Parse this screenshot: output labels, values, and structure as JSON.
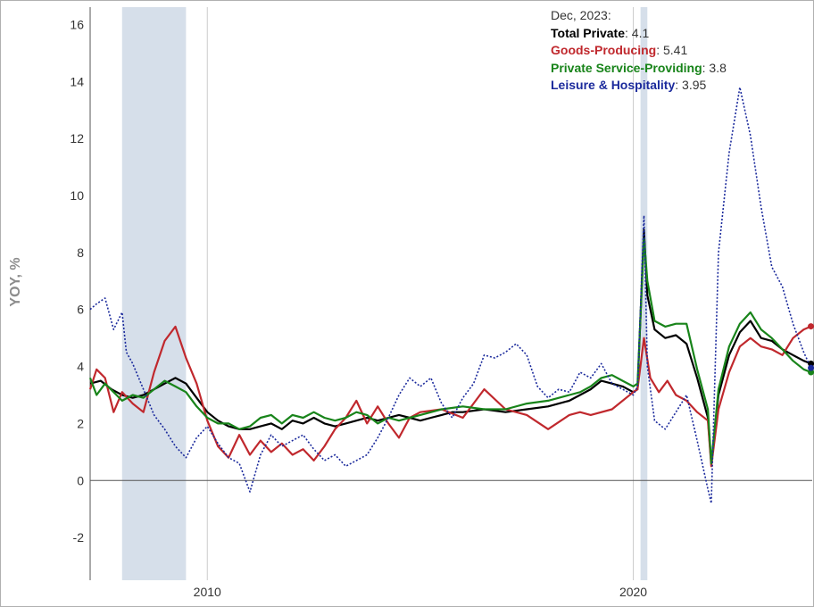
{
  "tooltip": {
    "date": "Dec, 2023:",
    "rows": [
      {
        "name": "Total Private",
        "value": "4.1",
        "color": "#000000"
      },
      {
        "name": "Goods-Producing",
        "value": "5.41",
        "color": "#c0282d"
      },
      {
        "name": "Private Service-Providing",
        "value": "3.8",
        "color": "#18841a"
      },
      {
        "name": "Leisure & Hospitality",
        "value": "3.95",
        "color": "#1b2a9c"
      }
    ]
  },
  "chart_data": {
    "type": "line",
    "title": "",
    "xlabel": "",
    "ylabel": "YOY, %",
    "xlim": [
      2007.25,
      2024.2
    ],
    "ylim": [
      -3.5,
      16.8
    ],
    "y_ticks": [
      -2,
      0,
      2,
      4,
      6,
      8,
      10,
      12,
      14,
      16
    ],
    "x_ticks": [
      {
        "value": 2010,
        "label": "2010"
      },
      {
        "value": 2020,
        "label": "2020"
      }
    ],
    "recessions": [
      [
        2008.0,
        2009.5
      ],
      [
        2020.17,
        2020.33
      ]
    ],
    "colors": {
      "recession": "#d6dfea",
      "zero_line": "#555555",
      "axis": "#555555",
      "vgrid": "#cccccc"
    },
    "series": [
      {
        "name": "Total Private",
        "color": "#000000",
        "style": "solid",
        "points": [
          [
            2007.25,
            3.4
          ],
          [
            2007.5,
            3.5
          ],
          [
            2007.75,
            3.2
          ],
          [
            2008.0,
            3.0
          ],
          [
            2008.25,
            2.9
          ],
          [
            2008.5,
            3.0
          ],
          [
            2008.75,
            3.2
          ],
          [
            2009.0,
            3.4
          ],
          [
            2009.25,
            3.6
          ],
          [
            2009.5,
            3.4
          ],
          [
            2009.75,
            2.9
          ],
          [
            2010.0,
            2.4
          ],
          [
            2010.25,
            2.1
          ],
          [
            2010.5,
            1.9
          ],
          [
            2010.75,
            1.8
          ],
          [
            2011.0,
            1.8
          ],
          [
            2011.25,
            1.9
          ],
          [
            2011.5,
            2.0
          ],
          [
            2011.75,
            1.8
          ],
          [
            2012.0,
            2.1
          ],
          [
            2012.25,
            2.0
          ],
          [
            2012.5,
            2.2
          ],
          [
            2012.75,
            2.0
          ],
          [
            2013.0,
            1.9
          ],
          [
            2013.25,
            2.0
          ],
          [
            2013.5,
            2.1
          ],
          [
            2013.75,
            2.2
          ],
          [
            2014.0,
            2.1
          ],
          [
            2014.25,
            2.2
          ],
          [
            2014.5,
            2.3
          ],
          [
            2014.75,
            2.2
          ],
          [
            2015.0,
            2.1
          ],
          [
            2015.25,
            2.2
          ],
          [
            2015.5,
            2.3
          ],
          [
            2015.75,
            2.4
          ],
          [
            2016.0,
            2.4
          ],
          [
            2016.5,
            2.5
          ],
          [
            2017.0,
            2.4
          ],
          [
            2017.5,
            2.5
          ],
          [
            2018.0,
            2.6
          ],
          [
            2018.5,
            2.8
          ],
          [
            2018.75,
            3.0
          ],
          [
            2019.0,
            3.2
          ],
          [
            2019.25,
            3.5
          ],
          [
            2019.5,
            3.4
          ],
          [
            2019.75,
            3.3
          ],
          [
            2020.0,
            3.1
          ],
          [
            2020.1,
            3.2
          ],
          [
            2020.25,
            8.8
          ],
          [
            2020.33,
            6.5
          ],
          [
            2020.5,
            5.3
          ],
          [
            2020.75,
            5.0
          ],
          [
            2021.0,
            5.1
          ],
          [
            2021.25,
            4.8
          ],
          [
            2021.5,
            3.6
          ],
          [
            2021.75,
            2.2
          ],
          [
            2021.83,
            0.6
          ],
          [
            2022.0,
            3.0
          ],
          [
            2022.25,
            4.4
          ],
          [
            2022.5,
            5.2
          ],
          [
            2022.75,
            5.6
          ],
          [
            2023.0,
            5.0
          ],
          [
            2023.25,
            4.9
          ],
          [
            2023.5,
            4.6
          ],
          [
            2023.75,
            4.4
          ],
          [
            2024.0,
            4.2
          ],
          [
            2024.17,
            4.1
          ]
        ]
      },
      {
        "name": "Goods-Producing",
        "color": "#c0282d",
        "style": "solid",
        "points": [
          [
            2007.25,
            3.2
          ],
          [
            2007.4,
            3.9
          ],
          [
            2007.6,
            3.6
          ],
          [
            2007.8,
            2.4
          ],
          [
            2008.0,
            3.1
          ],
          [
            2008.25,
            2.7
          ],
          [
            2008.5,
            2.4
          ],
          [
            2008.75,
            3.8
          ],
          [
            2009.0,
            4.9
          ],
          [
            2009.25,
            5.4
          ],
          [
            2009.5,
            4.3
          ],
          [
            2009.75,
            3.4
          ],
          [
            2010.0,
            2.1
          ],
          [
            2010.25,
            1.2
          ],
          [
            2010.5,
            0.8
          ],
          [
            2010.75,
            1.6
          ],
          [
            2011.0,
            0.9
          ],
          [
            2011.25,
            1.4
          ],
          [
            2011.5,
            1.0
          ],
          [
            2011.75,
            1.3
          ],
          [
            2012.0,
            0.9
          ],
          [
            2012.25,
            1.1
          ],
          [
            2012.5,
            0.7
          ],
          [
            2012.75,
            1.2
          ],
          [
            2013.0,
            1.8
          ],
          [
            2013.25,
            2.2
          ],
          [
            2013.5,
            2.8
          ],
          [
            2013.75,
            2.0
          ],
          [
            2014.0,
            2.6
          ],
          [
            2014.25,
            2.0
          ],
          [
            2014.5,
            1.5
          ],
          [
            2014.75,
            2.2
          ],
          [
            2015.0,
            2.4
          ],
          [
            2015.5,
            2.5
          ],
          [
            2016.0,
            2.2
          ],
          [
            2016.5,
            3.2
          ],
          [
            2017.0,
            2.5
          ],
          [
            2017.5,
            2.3
          ],
          [
            2018.0,
            1.8
          ],
          [
            2018.5,
            2.3
          ],
          [
            2018.75,
            2.4
          ],
          [
            2019.0,
            2.3
          ],
          [
            2019.5,
            2.5
          ],
          [
            2020.0,
            3.1
          ],
          [
            2020.1,
            3.2
          ],
          [
            2020.25,
            5.0
          ],
          [
            2020.4,
            3.6
          ],
          [
            2020.6,
            3.1
          ],
          [
            2020.8,
            3.5
          ],
          [
            2021.0,
            3.0
          ],
          [
            2021.25,
            2.8
          ],
          [
            2021.5,
            2.4
          ],
          [
            2021.75,
            2.1
          ],
          [
            2021.83,
            0.5
          ],
          [
            2022.0,
            2.5
          ],
          [
            2022.25,
            3.8
          ],
          [
            2022.5,
            4.7
          ],
          [
            2022.75,
            5.0
          ],
          [
            2023.0,
            4.7
          ],
          [
            2023.25,
            4.6
          ],
          [
            2023.5,
            4.4
          ],
          [
            2023.75,
            5.0
          ],
          [
            2024.0,
            5.3
          ],
          [
            2024.17,
            5.41
          ]
        ]
      },
      {
        "name": "Private Service-Providing",
        "color": "#18841a",
        "style": "solid",
        "points": [
          [
            2007.25,
            3.6
          ],
          [
            2007.4,
            3.0
          ],
          [
            2007.6,
            3.4
          ],
          [
            2007.8,
            3.1
          ],
          [
            2008.0,
            2.8
          ],
          [
            2008.25,
            3.0
          ],
          [
            2008.5,
            2.9
          ],
          [
            2008.75,
            3.2
          ],
          [
            2009.0,
            3.5
          ],
          [
            2009.25,
            3.3
          ],
          [
            2009.5,
            3.1
          ],
          [
            2009.75,
            2.6
          ],
          [
            2010.0,
            2.2
          ],
          [
            2010.25,
            2.0
          ],
          [
            2010.5,
            2.0
          ],
          [
            2010.75,
            1.8
          ],
          [
            2011.0,
            1.9
          ],
          [
            2011.25,
            2.2
          ],
          [
            2011.5,
            2.3
          ],
          [
            2011.75,
            2.0
          ],
          [
            2012.0,
            2.3
          ],
          [
            2012.25,
            2.2
          ],
          [
            2012.5,
            2.4
          ],
          [
            2012.75,
            2.2
          ],
          [
            2013.0,
            2.1
          ],
          [
            2013.25,
            2.2
          ],
          [
            2013.5,
            2.4
          ],
          [
            2013.75,
            2.3
          ],
          [
            2014.0,
            2.0
          ],
          [
            2014.25,
            2.2
          ],
          [
            2014.5,
            2.1
          ],
          [
            2014.75,
            2.2
          ],
          [
            2015.0,
            2.3
          ],
          [
            2015.5,
            2.5
          ],
          [
            2016.0,
            2.6
          ],
          [
            2016.5,
            2.5
          ],
          [
            2017.0,
            2.5
          ],
          [
            2017.5,
            2.7
          ],
          [
            2018.0,
            2.8
          ],
          [
            2018.5,
            3.0
          ],
          [
            2018.75,
            3.1
          ],
          [
            2019.0,
            3.3
          ],
          [
            2019.25,
            3.6
          ],
          [
            2019.5,
            3.7
          ],
          [
            2019.75,
            3.5
          ],
          [
            2020.0,
            3.3
          ],
          [
            2020.1,
            3.4
          ],
          [
            2020.25,
            8.5
          ],
          [
            2020.33,
            7.0
          ],
          [
            2020.5,
            5.6
          ],
          [
            2020.75,
            5.4
          ],
          [
            2021.0,
            5.5
          ],
          [
            2021.25,
            5.5
          ],
          [
            2021.5,
            3.9
          ],
          [
            2021.75,
            2.5
          ],
          [
            2021.83,
            0.6
          ],
          [
            2022.0,
            3.2
          ],
          [
            2022.25,
            4.7
          ],
          [
            2022.5,
            5.5
          ],
          [
            2022.75,
            5.9
          ],
          [
            2023.0,
            5.3
          ],
          [
            2023.25,
            5.0
          ],
          [
            2023.5,
            4.6
          ],
          [
            2023.75,
            4.2
          ],
          [
            2024.0,
            3.9
          ],
          [
            2024.17,
            3.8
          ]
        ]
      },
      {
        "name": "Leisure & Hospitality",
        "color": "#1b2a9c",
        "style": "dotted",
        "points": [
          [
            2007.25,
            6.0
          ],
          [
            2007.4,
            6.2
          ],
          [
            2007.6,
            6.4
          ],
          [
            2007.8,
            5.3
          ],
          [
            2008.0,
            5.9
          ],
          [
            2008.1,
            4.5
          ],
          [
            2008.25,
            4.1
          ],
          [
            2008.5,
            3.2
          ],
          [
            2008.75,
            2.3
          ],
          [
            2009.0,
            1.8
          ],
          [
            2009.25,
            1.2
          ],
          [
            2009.5,
            0.8
          ],
          [
            2009.75,
            1.5
          ],
          [
            2010.0,
            1.9
          ],
          [
            2010.25,
            1.3
          ],
          [
            2010.5,
            0.8
          ],
          [
            2010.75,
            0.6
          ],
          [
            2011.0,
            -0.4
          ],
          [
            2011.25,
            0.9
          ],
          [
            2011.5,
            1.6
          ],
          [
            2011.75,
            1.2
          ],
          [
            2012.0,
            1.4
          ],
          [
            2012.25,
            1.6
          ],
          [
            2012.5,
            1.1
          ],
          [
            2012.75,
            0.7
          ],
          [
            2013.0,
            0.9
          ],
          [
            2013.25,
            0.5
          ],
          [
            2013.5,
            0.7
          ],
          [
            2013.75,
            0.9
          ],
          [
            2014.0,
            1.5
          ],
          [
            2014.25,
            2.2
          ],
          [
            2014.5,
            3.0
          ],
          [
            2014.75,
            3.6
          ],
          [
            2015.0,
            3.3
          ],
          [
            2015.25,
            3.6
          ],
          [
            2015.5,
            2.7
          ],
          [
            2015.75,
            2.2
          ],
          [
            2016.0,
            2.9
          ],
          [
            2016.25,
            3.4
          ],
          [
            2016.5,
            4.4
          ],
          [
            2016.75,
            4.3
          ],
          [
            2017.0,
            4.5
          ],
          [
            2017.25,
            4.8
          ],
          [
            2017.5,
            4.4
          ],
          [
            2017.75,
            3.3
          ],
          [
            2018.0,
            2.9
          ],
          [
            2018.25,
            3.2
          ],
          [
            2018.5,
            3.1
          ],
          [
            2018.75,
            3.8
          ],
          [
            2019.0,
            3.6
          ],
          [
            2019.25,
            4.1
          ],
          [
            2019.5,
            3.4
          ],
          [
            2019.75,
            3.2
          ],
          [
            2020.0,
            3.0
          ],
          [
            2020.1,
            3.3
          ],
          [
            2020.25,
            9.3
          ],
          [
            2020.33,
            4.0
          ],
          [
            2020.5,
            2.1
          ],
          [
            2020.75,
            1.8
          ],
          [
            2021.0,
            2.4
          ],
          [
            2021.25,
            3.0
          ],
          [
            2021.5,
            1.4
          ],
          [
            2021.75,
            -0.3
          ],
          [
            2021.83,
            -0.8
          ],
          [
            2022.0,
            8.0
          ],
          [
            2022.25,
            11.5
          ],
          [
            2022.5,
            13.8
          ],
          [
            2022.75,
            12.1
          ],
          [
            2023.0,
            9.6
          ],
          [
            2023.25,
            7.5
          ],
          [
            2023.5,
            6.8
          ],
          [
            2023.75,
            5.5
          ],
          [
            2024.0,
            4.5
          ],
          [
            2024.17,
            3.95
          ]
        ]
      }
    ]
  }
}
